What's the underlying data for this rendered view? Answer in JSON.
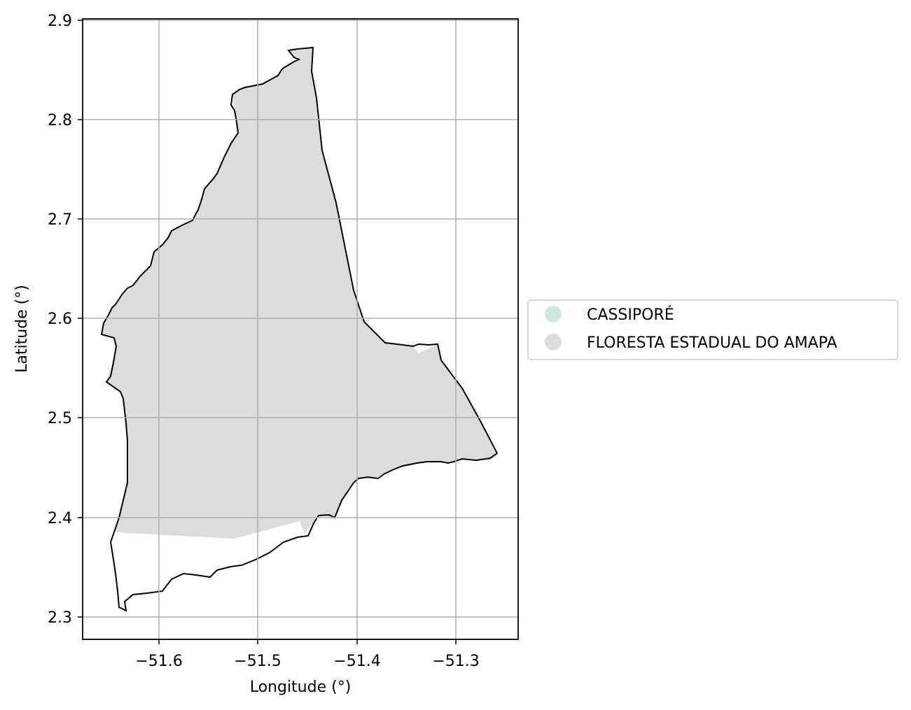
{
  "map": {
    "xlabel": "Longitude (°)",
    "ylabel": "Latitude (°)",
    "x_ticks": [
      "−51.6",
      "−51.5",
      "−51.4",
      "−51.3"
    ],
    "y_ticks": [
      "2.3",
      "2.4",
      "2.5",
      "2.6",
      "2.7",
      "2.8",
      "2.9"
    ],
    "grid": true,
    "boundary_color": "#000000",
    "grid_color": "#b0b0b0"
  },
  "legend": {
    "placement": "right",
    "items": [
      {
        "label": "CASSIPORÉ",
        "color": "#c9eadb"
      },
      {
        "label": "FLORESTA ESTADUAL DO AMAPA",
        "color": "#dcdcdc"
      }
    ]
  }
}
